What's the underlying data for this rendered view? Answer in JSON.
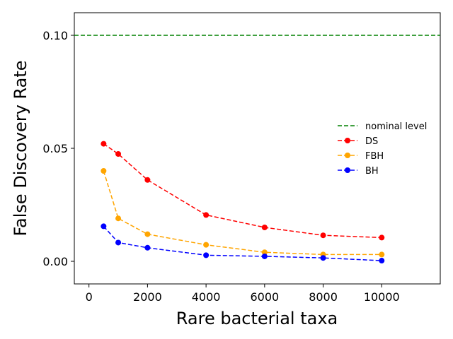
{
  "chart_data": {
    "type": "line",
    "title": "",
    "xlabel": "Rare bacterial taxa",
    "ylabel": "False Discovery Rate",
    "xlim": [
      -500,
      12000
    ],
    "ylim": [
      -0.01,
      0.11
    ],
    "xticks": [
      0,
      2000,
      4000,
      6000,
      8000,
      10000
    ],
    "xtick_labels": [
      "0",
      "2000",
      "4000",
      "6000",
      "8000",
      "10000"
    ],
    "yticks": [
      0.0,
      0.05,
      0.1
    ],
    "ytick_labels": [
      "0.00",
      "0.05",
      "0.10"
    ],
    "grid": false,
    "legend_position": "right",
    "reference_line": {
      "name": "nominal level",
      "y": 0.1,
      "color": "#008000",
      "style": "dashed"
    },
    "x": [
      500,
      1000,
      2000,
      4000,
      6000,
      8000,
      10000
    ],
    "series": [
      {
        "name": "DS",
        "color": "#ff0000",
        "values": [
          0.052,
          0.0475,
          0.036,
          0.0205,
          0.015,
          0.0115,
          0.0105
        ]
      },
      {
        "name": "FBH",
        "color": "#ffa500",
        "values": [
          0.04,
          0.019,
          0.012,
          0.0073,
          0.004,
          0.003,
          0.003
        ]
      },
      {
        "name": "BH",
        "color": "#0000ff",
        "values": [
          0.0155,
          0.0083,
          0.006,
          0.0027,
          0.0022,
          0.0015,
          0.0003
        ]
      }
    ]
  }
}
